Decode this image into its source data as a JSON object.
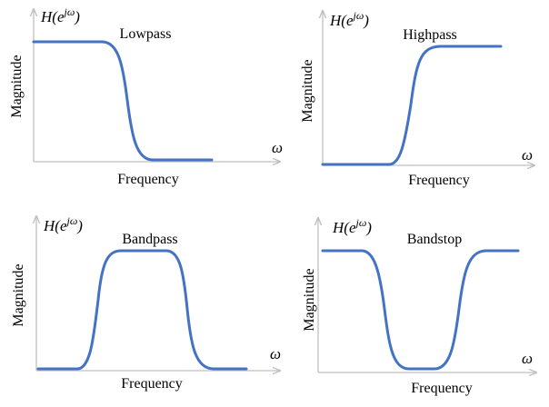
{
  "panels": [
    {
      "title": "Lowpass",
      "y_axis_label": "Magnitude",
      "x_axis_label": "Frequency",
      "y_symbol": "H(e",
      "y_symbol_sup": "jω",
      "y_symbol_close": ")",
      "x_symbol": "ω"
    },
    {
      "title": "Highpass",
      "y_axis_label": "Magnitude",
      "x_axis_label": "Frequency",
      "y_symbol": "H(e",
      "y_symbol_sup": "jω",
      "y_symbol_close": ")",
      "x_symbol": "ω"
    },
    {
      "title": "Bandpass",
      "y_axis_label": "Magnitude",
      "x_axis_label": "Frequency",
      "y_symbol": "H(e",
      "y_symbol_sup": "jω",
      "y_symbol_close": ")",
      "x_symbol": "ω"
    },
    {
      "title": "Bandstop",
      "y_axis_label": "Magnitude",
      "x_axis_label": "Frequency",
      "y_symbol": "H(e",
      "y_symbol_sup": "jω",
      "y_symbol_close": ")",
      "x_symbol": "ω"
    }
  ]
}
